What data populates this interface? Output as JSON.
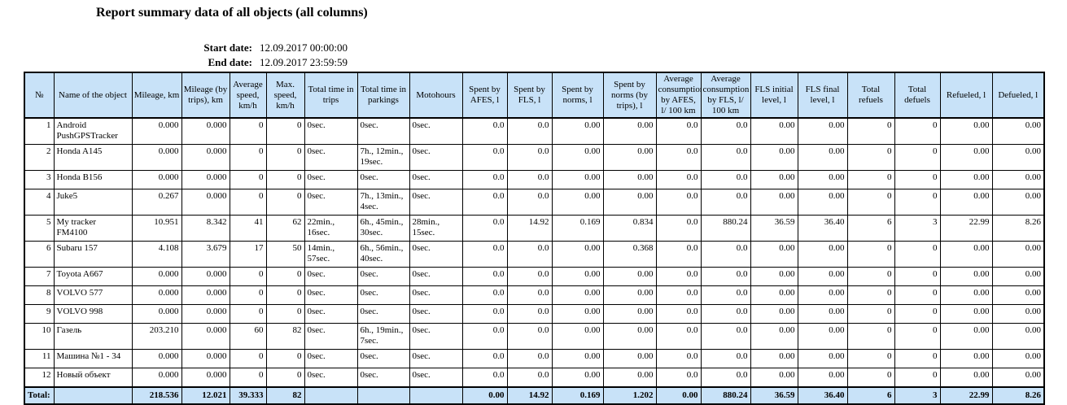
{
  "report": {
    "title": "Report summary data of all objects (all columns)",
    "start_date_label": "Start date:",
    "start_date": "12.09.2017 00:00:00",
    "end_date_label": "End date:",
    "end_date": "12.09.2017 23:59:59"
  },
  "colors": {
    "header_bg": "#c8e2f8",
    "total_bg": "#c8e2f8",
    "border": "#000000"
  },
  "table": {
    "columns": [
      {
        "key": "num",
        "label": "№"
      },
      {
        "key": "name",
        "label": "Name of the object"
      },
      {
        "key": "mileage_km",
        "label": "Mileage, km"
      },
      {
        "key": "mileage_trips_km",
        "label": "Mileage (by trips), km"
      },
      {
        "key": "avg_speed",
        "label": "Average speed, km/h"
      },
      {
        "key": "max_speed",
        "label": "Max. speed, km/h"
      },
      {
        "key": "time_trips",
        "label": "Total time in trips"
      },
      {
        "key": "time_parkings",
        "label": "Total time in parkings"
      },
      {
        "key": "motohours",
        "label": "Motohours"
      },
      {
        "key": "spent_afes",
        "label": "Spent by AFES, l"
      },
      {
        "key": "spent_fls",
        "label": "Spent by FLS, l"
      },
      {
        "key": "spent_norms",
        "label": "Spent by norms, l"
      },
      {
        "key": "spent_norms_trips",
        "label": "Spent by norms (by trips), l"
      },
      {
        "key": "avg_cons_afes",
        "label": "Average consumption by AFES, l/ 100 km"
      },
      {
        "key": "avg_cons_fls",
        "label": "Average consumption by FLS, l/ 100 km"
      },
      {
        "key": "fls_initial",
        "label": "FLS initial level, l"
      },
      {
        "key": "fls_final",
        "label": "FLS final level, l"
      },
      {
        "key": "total_refuels",
        "label": "Total refuels"
      },
      {
        "key": "total_defuels",
        "label": "Total defuels"
      },
      {
        "key": "refueled",
        "label": "Refueled, l"
      },
      {
        "key": "defueled",
        "label": "Defueled, l"
      }
    ],
    "rows": [
      {
        "num": "1",
        "name": "Android PushGPSTracker",
        "mileage_km": "0.000",
        "mileage_trips_km": "0.000",
        "avg_speed": "0",
        "max_speed": "0",
        "time_trips": "0sec.",
        "time_parkings": "0sec.",
        "motohours": "0sec.",
        "spent_afes": "0.0",
        "spent_fls": "0.0",
        "spent_norms": "0.00",
        "spent_norms_trips": "0.00",
        "avg_cons_afes": "0.0",
        "avg_cons_fls": "0.0",
        "fls_initial": "0.00",
        "fls_final": "0.00",
        "total_refuels": "0",
        "total_defuels": "0",
        "refueled": "0.00",
        "defueled": "0.00"
      },
      {
        "num": "2",
        "name": "Honda A145",
        "mileage_km": "0.000",
        "mileage_trips_km": "0.000",
        "avg_speed": "0",
        "max_speed": "0",
        "time_trips": "0sec.",
        "time_parkings": "7h., 12min., 19sec.",
        "motohours": "0sec.",
        "spent_afes": "0.0",
        "spent_fls": "0.0",
        "spent_norms": "0.00",
        "spent_norms_trips": "0.00",
        "avg_cons_afes": "0.0",
        "avg_cons_fls": "0.0",
        "fls_initial": "0.00",
        "fls_final": "0.00",
        "total_refuels": "0",
        "total_defuels": "0",
        "refueled": "0.00",
        "defueled": "0.00"
      },
      {
        "num": "3",
        "name": "Honda B156",
        "mileage_km": "0.000",
        "mileage_trips_km": "0.000",
        "avg_speed": "0",
        "max_speed": "0",
        "time_trips": "0sec.",
        "time_parkings": "0sec.",
        "motohours": "0sec.",
        "spent_afes": "0.0",
        "spent_fls": "0.0",
        "spent_norms": "0.00",
        "spent_norms_trips": "0.00",
        "avg_cons_afes": "0.0",
        "avg_cons_fls": "0.0",
        "fls_initial": "0.00",
        "fls_final": "0.00",
        "total_refuels": "0",
        "total_defuels": "0",
        "refueled": "0.00",
        "defueled": "0.00"
      },
      {
        "num": "4",
        "name": "Juke5",
        "mileage_km": "0.267",
        "mileage_trips_km": "0.000",
        "avg_speed": "0",
        "max_speed": "0",
        "time_trips": "0sec.",
        "time_parkings": "7h., 13min., 4sec.",
        "motohours": "0sec.",
        "spent_afes": "0.0",
        "spent_fls": "0.0",
        "spent_norms": "0.00",
        "spent_norms_trips": "0.00",
        "avg_cons_afes": "0.0",
        "avg_cons_fls": "0.0",
        "fls_initial": "0.00",
        "fls_final": "0.00",
        "total_refuels": "0",
        "total_defuels": "0",
        "refueled": "0.00",
        "defueled": "0.00"
      },
      {
        "num": "5",
        "name": "My tracker FM4100",
        "mileage_km": "10.951",
        "mileage_trips_km": "8.342",
        "avg_speed": "41",
        "max_speed": "62",
        "time_trips": "22min., 16sec.",
        "time_parkings": "6h., 45min., 30sec.",
        "motohours": "28min., 15sec.",
        "spent_afes": "0.0",
        "spent_fls": "14.92",
        "spent_norms": "0.169",
        "spent_norms_trips": "0.834",
        "avg_cons_afes": "0.0",
        "avg_cons_fls": "880.24",
        "fls_initial": "36.59",
        "fls_final": "36.40",
        "total_refuels": "6",
        "total_defuels": "3",
        "refueled": "22.99",
        "defueled": "8.26"
      },
      {
        "num": "6",
        "name": "Subaru 157",
        "mileage_km": "4.108",
        "mileage_trips_km": "3.679",
        "avg_speed": "17",
        "max_speed": "50",
        "time_trips": "14min., 57sec.",
        "time_parkings": "6h., 56min., 40sec.",
        "motohours": "0sec.",
        "spent_afes": "0.0",
        "spent_fls": "0.0",
        "spent_norms": "0.00",
        "spent_norms_trips": "0.368",
        "avg_cons_afes": "0.0",
        "avg_cons_fls": "0.0",
        "fls_initial": "0.00",
        "fls_final": "0.00",
        "total_refuels": "0",
        "total_defuels": "0",
        "refueled": "0.00",
        "defueled": "0.00"
      },
      {
        "num": "7",
        "name": "Toyota A667",
        "mileage_km": "0.000",
        "mileage_trips_km": "0.000",
        "avg_speed": "0",
        "max_speed": "0",
        "time_trips": "0sec.",
        "time_parkings": "0sec.",
        "motohours": "0sec.",
        "spent_afes": "0.0",
        "spent_fls": "0.0",
        "spent_norms": "0.00",
        "spent_norms_trips": "0.00",
        "avg_cons_afes": "0.0",
        "avg_cons_fls": "0.0",
        "fls_initial": "0.00",
        "fls_final": "0.00",
        "total_refuels": "0",
        "total_defuels": "0",
        "refueled": "0.00",
        "defueled": "0.00"
      },
      {
        "num": "8",
        "name": "VOLVO 577",
        "mileage_km": "0.000",
        "mileage_trips_km": "0.000",
        "avg_speed": "0",
        "max_speed": "0",
        "time_trips": "0sec.",
        "time_parkings": "0sec.",
        "motohours": "0sec.",
        "spent_afes": "0.0",
        "spent_fls": "0.0",
        "spent_norms": "0.00",
        "spent_norms_trips": "0.00",
        "avg_cons_afes": "0.0",
        "avg_cons_fls": "0.0",
        "fls_initial": "0.00",
        "fls_final": "0.00",
        "total_refuels": "0",
        "total_defuels": "0",
        "refueled": "0.00",
        "defueled": "0.00"
      },
      {
        "num": "9",
        "name": "VOLVO 998",
        "mileage_km": "0.000",
        "mileage_trips_km": "0.000",
        "avg_speed": "0",
        "max_speed": "0",
        "time_trips": "0sec.",
        "time_parkings": "0sec.",
        "motohours": "0sec.",
        "spent_afes": "0.0",
        "spent_fls": "0.0",
        "spent_norms": "0.00",
        "spent_norms_trips": "0.00",
        "avg_cons_afes": "0.0",
        "avg_cons_fls": "0.0",
        "fls_initial": "0.00",
        "fls_final": "0.00",
        "total_refuels": "0",
        "total_defuels": "0",
        "refueled": "0.00",
        "defueled": "0.00"
      },
      {
        "num": "10",
        "name": "Газель",
        "mileage_km": "203.210",
        "mileage_trips_km": "0.000",
        "avg_speed": "60",
        "max_speed": "82",
        "time_trips": "0sec.",
        "time_parkings": "6h., 19min., 7sec.",
        "motohours": "0sec.",
        "spent_afes": "0.0",
        "spent_fls": "0.0",
        "spent_norms": "0.00",
        "spent_norms_trips": "0.00",
        "avg_cons_afes": "0.0",
        "avg_cons_fls": "0.0",
        "fls_initial": "0.00",
        "fls_final": "0.00",
        "total_refuels": "0",
        "total_defuels": "0",
        "refueled": "0.00",
        "defueled": "0.00"
      },
      {
        "num": "11",
        "name": "Машина №1 - 34",
        "mileage_km": "0.000",
        "mileage_trips_km": "0.000",
        "avg_speed": "0",
        "max_speed": "0",
        "time_trips": "0sec.",
        "time_parkings": "0sec.",
        "motohours": "0sec.",
        "spent_afes": "0.0",
        "spent_fls": "0.0",
        "spent_norms": "0.00",
        "spent_norms_trips": "0.00",
        "avg_cons_afes": "0.0",
        "avg_cons_fls": "0.0",
        "fls_initial": "0.00",
        "fls_final": "0.00",
        "total_refuels": "0",
        "total_defuels": "0",
        "refueled": "0.00",
        "defueled": "0.00"
      },
      {
        "num": "12",
        "name": "Новый объект",
        "mileage_km": "0.000",
        "mileage_trips_km": "0.000",
        "avg_speed": "0",
        "max_speed": "0",
        "time_trips": "0sec.",
        "time_parkings": "0sec.",
        "motohours": "0sec.",
        "spent_afes": "0.0",
        "spent_fls": "0.0",
        "spent_norms": "0.00",
        "spent_norms_trips": "0.00",
        "avg_cons_afes": "0.0",
        "avg_cons_fls": "0.0",
        "fls_initial": "0.00",
        "fls_final": "0.00",
        "total_refuels": "0",
        "total_defuels": "0",
        "refueled": "0.00",
        "defueled": "0.00"
      }
    ],
    "total_label": "Total:",
    "total": {
      "name": "",
      "mileage_km": "218.536",
      "mileage_trips_km": "12.021",
      "avg_speed": "39.333",
      "max_speed": "82",
      "time_trips": "",
      "time_parkings": "",
      "motohours": "",
      "spent_afes": "0.00",
      "spent_fls": "14.92",
      "spent_norms": "0.169",
      "spent_norms_trips": "1.202",
      "avg_cons_afes": "0.00",
      "avg_cons_fls": "880.24",
      "fls_initial": "36.59",
      "fls_final": "36.40",
      "total_refuels": "6",
      "total_defuels": "3",
      "refueled": "22.99",
      "defueled": "8.26"
    }
  }
}
